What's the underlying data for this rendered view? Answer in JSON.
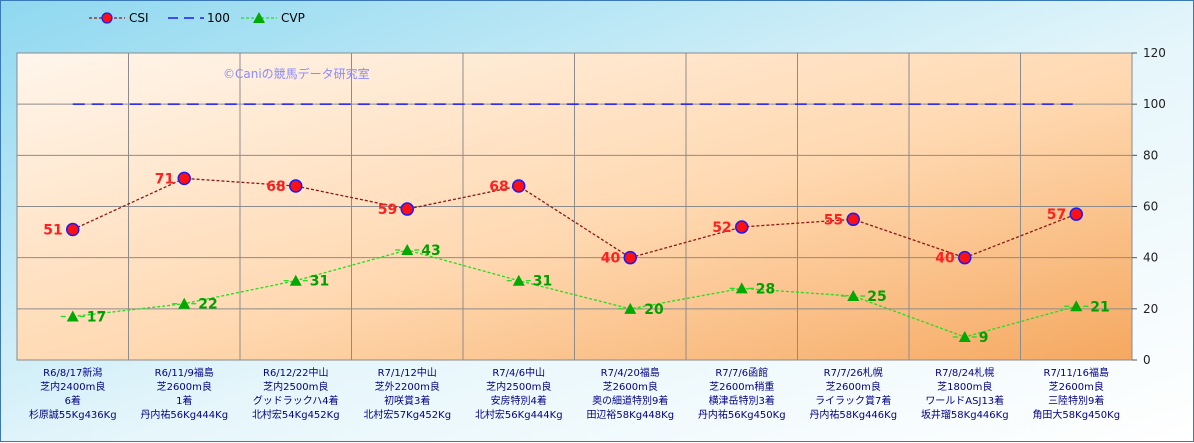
{
  "chart_data": {
    "type": "line",
    "watermark": "©Caniの競馬データ研究室",
    "ylim": [
      0,
      120
    ],
    "yticks": [
      0,
      20,
      40,
      60,
      80,
      100,
      120
    ],
    "grid": true,
    "legend_placement": "top-left",
    "categories": [
      [
        "R6/8/17新潟",
        "芝内2400m良",
        "6着",
        "杉原誠55Kg436Kg"
      ],
      [
        "R6/11/9福島",
        "芝2600m良",
        "1着",
        "丹内祐56Kg444Kg"
      ],
      [
        "R6/12/22中山",
        "芝内2500m良",
        "グッドラックハ4着",
        "北村宏54Kg452Kg"
      ],
      [
        "R7/1/12中山",
        "芝外2200m良",
        "初咲賞3着",
        "北村宏57Kg452Kg"
      ],
      [
        "R7/4/6中山",
        "芝内2500m良",
        "安房特別4着",
        "北村宏56Kg444Kg"
      ],
      [
        "R7/4/20福島",
        "芝2600m良",
        "奥の細道特別9着",
        "田辺裕58Kg448Kg"
      ],
      [
        "R7/7/6函館",
        "芝2600m稍重",
        "横津岳特別3着",
        "丹内祐56Kg450Kg"
      ],
      [
        "R7/7/26札幌",
        "芝2600m良",
        "ライラック賞7着",
        "丹内祐58Kg446Kg"
      ],
      [
        "R7/8/24札幌",
        "芝1800m良",
        "ワールドASJ13着",
        "坂井瑠58Kg446Kg"
      ],
      [
        "R7/11/16福島",
        "芝2600m良",
        "三陸特別9着",
        "角田大58Kg450Kg"
      ]
    ],
    "series": [
      {
        "name": "CSI",
        "values": [
          51,
          71,
          68,
          59,
          68,
          40,
          52,
          55,
          40,
          57
        ],
        "color": "#8b1a1a",
        "marker": "circle",
        "marker_fill": "#ff1010",
        "marker_stroke": "#1a1aff",
        "line_style": "dashed"
      },
      {
        "name": "100",
        "values": [
          100,
          100,
          100,
          100,
          100,
          100,
          100,
          100,
          100,
          100
        ],
        "color": "#1a1aff",
        "marker": "none",
        "line_style": "long-dash"
      },
      {
        "name": "CVP",
        "values": [
          17,
          22,
          31,
          43,
          31,
          20,
          28,
          25,
          9,
          21
        ],
        "color": "#22dd22",
        "marker": "triangle",
        "marker_fill": "#00aa00",
        "line_style": "dashed"
      }
    ]
  }
}
